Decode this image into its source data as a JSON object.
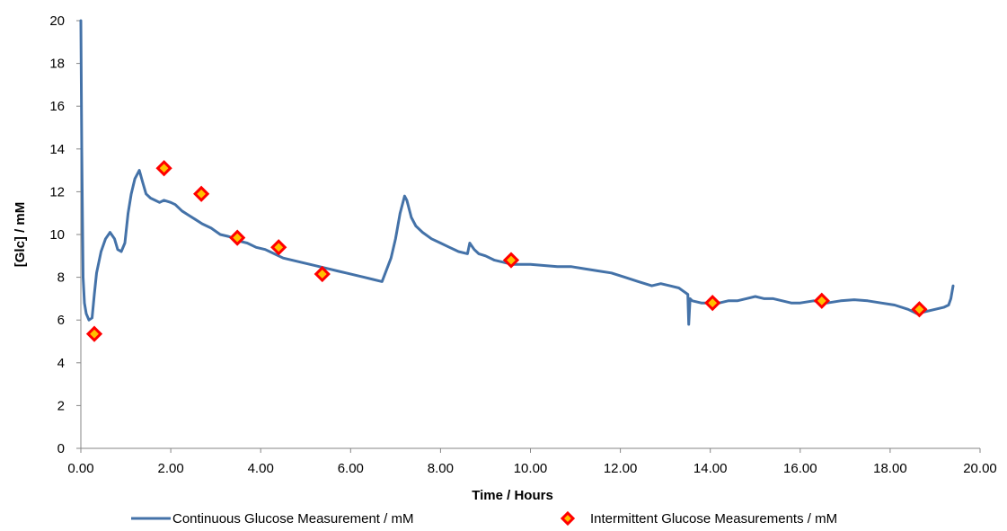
{
  "chart_data": {
    "type": "line",
    "title": "",
    "xlabel": "Time / Hours",
    "ylabel": "[Glc] / mM",
    "xlim": [
      0,
      20
    ],
    "ylim": [
      0,
      20
    ],
    "x_ticks": [
      "0.00",
      "2.00",
      "4.00",
      "6.00",
      "8.00",
      "10.00",
      "12.00",
      "14.00",
      "16.00",
      "18.00",
      "20.00"
    ],
    "y_ticks": [
      "0",
      "2",
      "4",
      "6",
      "8",
      "10",
      "12",
      "14",
      "16",
      "18",
      "20"
    ],
    "grid": false,
    "legend_position": "bottom",
    "series": [
      {
        "name": "Continuous Glucose Measurement / mM",
        "type": "line",
        "color": "#4472A8",
        "x": [
          0.0,
          0.02,
          0.05,
          0.08,
          0.12,
          0.18,
          0.25,
          0.3,
          0.35,
          0.45,
          0.55,
          0.65,
          0.75,
          0.82,
          0.9,
          0.98,
          1.05,
          1.12,
          1.2,
          1.3,
          1.38,
          1.45,
          1.55,
          1.65,
          1.75,
          1.85,
          2.0,
          2.1,
          2.25,
          2.4,
          2.55,
          2.7,
          2.9,
          3.1,
          3.3,
          3.5,
          3.7,
          3.9,
          4.1,
          4.3,
          4.5,
          4.7,
          4.9,
          5.1,
          5.3,
          5.5,
          5.7,
          5.9,
          6.1,
          6.3,
          6.5,
          6.7,
          6.9,
          7.0,
          7.1,
          7.2,
          7.25,
          7.35,
          7.45,
          7.6,
          7.8,
          8.0,
          8.2,
          8.4,
          8.6,
          8.65,
          8.75,
          8.85,
          9.0,
          9.2,
          9.4,
          9.6,
          9.8,
          10.0,
          10.3,
          10.6,
          10.9,
          11.2,
          11.5,
          11.8,
          12.1,
          12.4,
          12.7,
          12.9,
          13.1,
          13.3,
          13.5,
          13.52,
          13.55,
          13.6,
          13.8,
          14.0,
          14.2,
          14.4,
          14.6,
          14.8,
          15.0,
          15.2,
          15.4,
          15.6,
          15.8,
          16.0,
          16.3,
          16.6,
          16.9,
          17.2,
          17.5,
          17.8,
          18.1,
          18.4,
          18.6,
          18.8,
          19.0,
          19.2,
          19.3,
          19.35,
          19.4
        ],
        "y": [
          20.0,
          14.0,
          8.0,
          6.8,
          6.3,
          6.0,
          6.1,
          7.2,
          8.2,
          9.2,
          9.8,
          10.1,
          9.8,
          9.3,
          9.2,
          9.6,
          11.0,
          11.9,
          12.6,
          13.0,
          12.4,
          11.9,
          11.7,
          11.6,
          11.5,
          11.6,
          11.5,
          11.4,
          11.1,
          10.9,
          10.7,
          10.5,
          10.3,
          10.0,
          9.9,
          9.7,
          9.6,
          9.4,
          9.3,
          9.1,
          8.9,
          8.8,
          8.7,
          8.6,
          8.5,
          8.4,
          8.3,
          8.2,
          8.1,
          8.0,
          7.9,
          7.8,
          8.9,
          9.8,
          11.0,
          11.8,
          11.6,
          10.8,
          10.4,
          10.1,
          9.8,
          9.6,
          9.4,
          9.2,
          9.1,
          9.6,
          9.3,
          9.1,
          9.0,
          8.8,
          8.7,
          8.6,
          8.6,
          8.6,
          8.55,
          8.5,
          8.5,
          8.4,
          8.3,
          8.2,
          8.0,
          7.8,
          7.6,
          7.7,
          7.6,
          7.5,
          7.2,
          5.8,
          7.0,
          6.9,
          6.8,
          6.8,
          6.8,
          6.9,
          6.9,
          7.0,
          7.1,
          7.0,
          7.0,
          6.9,
          6.8,
          6.8,
          6.9,
          6.8,
          6.9,
          6.95,
          6.9,
          6.8,
          6.7,
          6.5,
          6.3,
          6.4,
          6.5,
          6.6,
          6.7,
          7.0,
          7.6
        ]
      },
      {
        "name": "Intermittent Glucose Measurements / mM",
        "type": "scatter",
        "marker": "diamond",
        "color": "#FF0000",
        "fill": "#FFC000",
        "x": [
          0.3,
          1.85,
          2.68,
          3.48,
          4.4,
          5.37,
          9.57,
          14.05,
          16.48,
          18.65
        ],
        "y": [
          5.35,
          13.1,
          11.9,
          9.85,
          9.4,
          8.15,
          8.8,
          6.8,
          6.9,
          6.5
        ]
      }
    ]
  }
}
